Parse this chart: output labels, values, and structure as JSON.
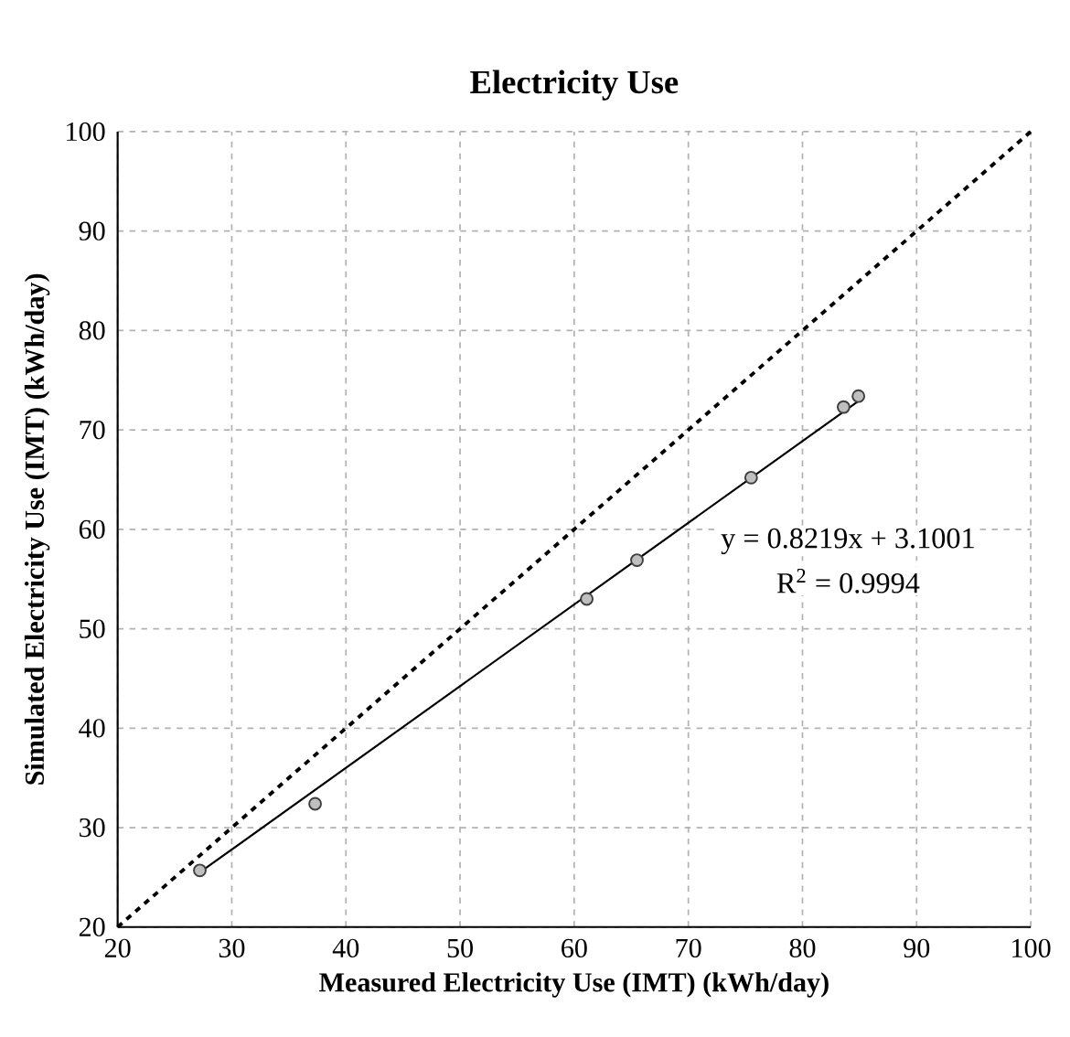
{
  "chart_data": {
    "type": "scatter",
    "title": "Electricity Use",
    "xlabel": "Measured Electricity Use (IMT) (kWh/day)",
    "ylabel": "Simulated Electricity Use (IMT) (kWh/day)",
    "xlim": [
      20,
      100
    ],
    "ylim": [
      20,
      100
    ],
    "xticks": [
      20,
      30,
      40,
      50,
      60,
      70,
      80,
      90,
      100
    ],
    "yticks": [
      20,
      30,
      40,
      50,
      60,
      70,
      80,
      90,
      100
    ],
    "grid": true,
    "marker": "circle",
    "series": [
      {
        "type": "scatter",
        "color": "#404040",
        "x": [
          27.2,
          37.3,
          61.1,
          65.5,
          75.5,
          83.6,
          84.9
        ],
        "values": [
          25.7,
          32.4,
          53.0,
          56.9,
          65.2,
          72.3,
          73.4
        ]
      },
      {
        "type": "line",
        "color": "#000000",
        "marker": "none",
        "line_style": "solid",
        "x": [
          27.2,
          84.9
        ],
        "values": [
          25.5,
          72.9
        ]
      },
      {
        "type": "line",
        "color": "#000000",
        "marker": "none",
        "line_style": "dashed",
        "x": [
          20,
          100
        ],
        "values": [
          20,
          100
        ]
      }
    ],
    "annotations": [
      "y = 0.8219x + 3.1001",
      "R$^{2}$ = 0.9994"
    ]
  }
}
